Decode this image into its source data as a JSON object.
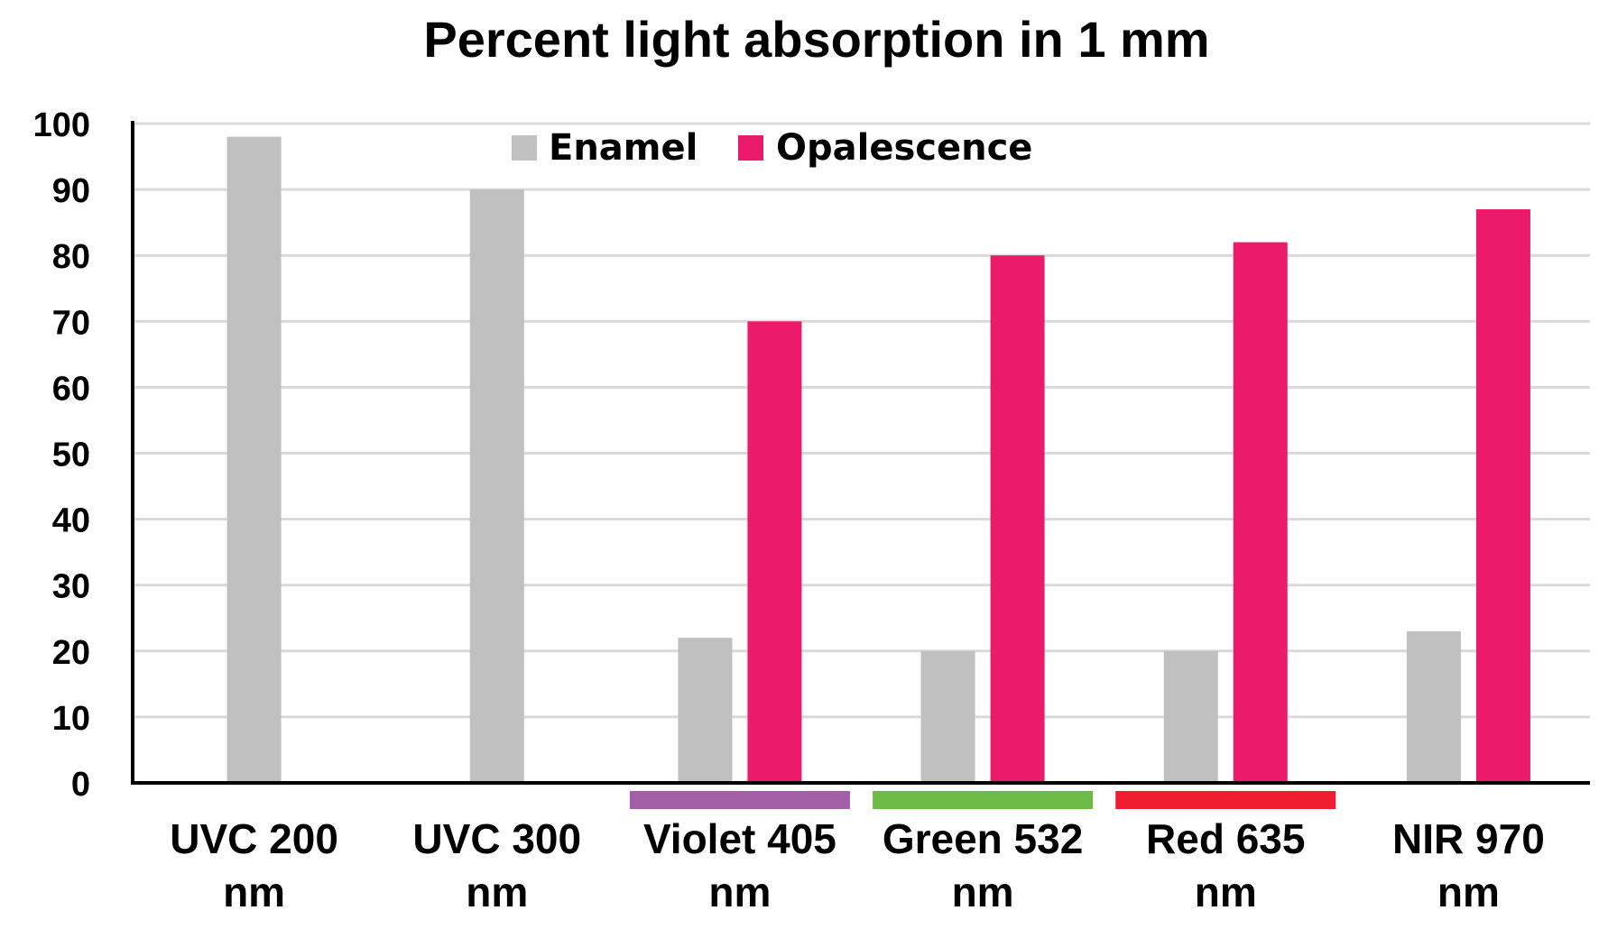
{
  "chart_data": {
    "type": "bar",
    "title": "Percent light absorption in 1 mm",
    "xlabel": "",
    "ylabel": "",
    "ylim": [
      0,
      100
    ],
    "yticks": [
      0,
      10,
      20,
      30,
      40,
      50,
      60,
      70,
      80,
      90,
      100
    ],
    "grid": true,
    "legend_position": "top",
    "categories": [
      {
        "line1": "UVC 200",
        "line2": "nm",
        "band_color": null
      },
      {
        "line1": "UVC 300",
        "line2": "nm",
        "band_color": null
      },
      {
        "line1": "Violet 405",
        "line2": "nm",
        "band_color": "#a35ea8"
      },
      {
        "line1": "Green 532",
        "line2": "nm",
        "band_color": "#6cbb45"
      },
      {
        "line1": "Red 635",
        "line2": "nm",
        "band_color": "#ee1c2e"
      },
      {
        "line1": "NIR 970",
        "line2": "nm",
        "band_color": null
      }
    ],
    "series": [
      {
        "name": "Enamel",
        "color": "#c0c0c0",
        "values": [
          98,
          90,
          22,
          20,
          20,
          23
        ]
      },
      {
        "name": "Opalescence",
        "color": "#ec1a6a",
        "values": [
          null,
          null,
          70,
          80,
          82,
          87
        ]
      }
    ]
  }
}
